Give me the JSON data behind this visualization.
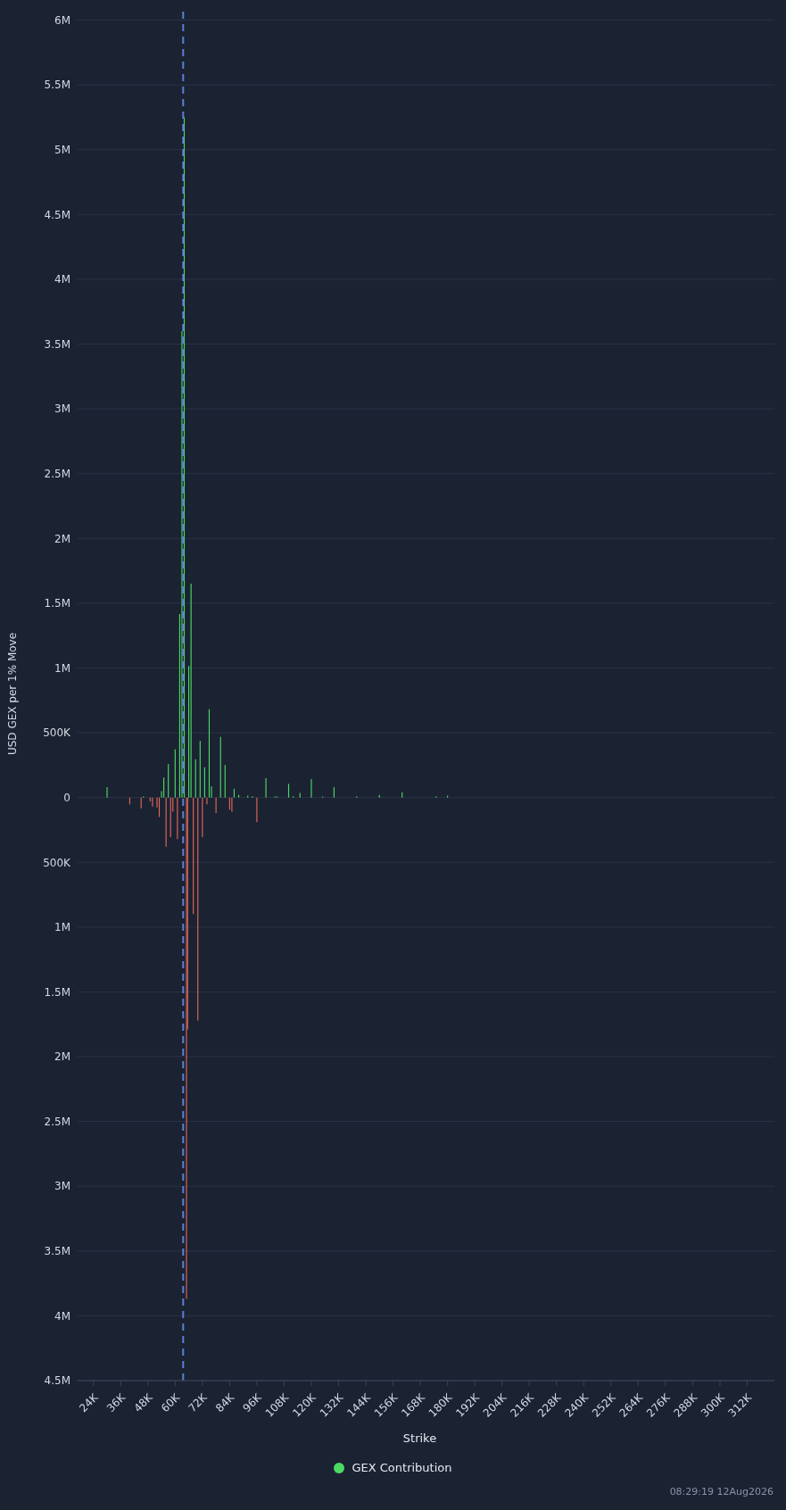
{
  "chart_data": {
    "type": "bar",
    "xlabel": "Strike",
    "ylabel": "USD GEX per 1% Move",
    "x": [
      30000,
      35000,
      40000,
      45000,
      46000,
      49000,
      50000,
      52000,
      53000,
      54000,
      55000,
      56000,
      57000,
      58000,
      59000,
      60000,
      61000,
      62000,
      63000,
      64000,
      65000,
      65500,
      66000,
      67000,
      68000,
      69000,
      70000,
      71000,
      72000,
      73000,
      74000,
      75000,
      76000,
      78000,
      80000,
      82000,
      84000,
      85000,
      86000,
      88000,
      90000,
      92000,
      94000,
      96000,
      100000,
      104000,
      105000,
      110000,
      112000,
      115000,
      120000,
      125000,
      130000,
      140000,
      150000,
      160000,
      175000,
      180000
    ],
    "series": [
      {
        "name": "GEX Contribution",
        "color": "#4cd964",
        "values": [
          80000,
          null,
          -53000,
          -83000,
          8000,
          -30000,
          -70000,
          -76000,
          -150000,
          50000,
          154000,
          -379000,
          257000,
          -305000,
          -110000,
          372000,
          -321000,
          1416000,
          3600000,
          5250000,
          -3870000,
          -1790000,
          1015000,
          1650000,
          -900000,
          296000,
          -1720000,
          436000,
          -305000,
          234000,
          -53000,
          682000,
          85000,
          -120000,
          468000,
          250000,
          -94000,
          -110000,
          67000,
          20000,
          null,
          15000,
          10000,
          -190000,
          149000,
          8000,
          8000,
          105000,
          10000,
          36000,
          143000,
          8000,
          80000,
          10000,
          20000,
          40000,
          10000,
          15000
        ],
        "colors": [
          "#4cd964",
          "#e0675a",
          "#e0675a",
          "#e0675a",
          "#4cd964",
          "#e0675a",
          "#e0675a",
          "#e0675a",
          "#e0675a",
          "#4cd964",
          "#4cd964",
          "#e0675a",
          "#4cd964",
          "#e0675a",
          "#e0675a",
          "#4cd964",
          "#e0675a",
          "#4cd964",
          "#4cd964",
          "#4cd964",
          "#e0675a",
          "#e0675a",
          "#4cd964",
          "#4cd964",
          "#e0675a",
          "#4cd964",
          "#e0675a",
          "#4cd964",
          "#e0675a",
          "#4cd964",
          "#e0675a",
          "#4cd964",
          "#4cd964",
          "#e0675a",
          "#4cd964",
          "#4cd964",
          "#e0675a",
          "#e0675a",
          "#4cd964",
          "#4cd964",
          "#e0675a",
          "#4cd964",
          "#4cd964",
          "#e0675a",
          "#4cd964",
          "#4cd964",
          "#4cd964",
          "#4cd964",
          "#4cd964",
          "#4cd964",
          "#4cd964",
          "#4cd964",
          "#4cd964",
          "#4cd964",
          "#4cd964",
          "#4cd964",
          "#4cd964",
          "#4cd964"
        ]
      }
    ],
    "xlim": [
      17000,
      324000
    ],
    "xticks": [
      {
        "value": 24000,
        "label": "24K"
      },
      {
        "value": 36000,
        "label": "36K"
      },
      {
        "value": 48000,
        "label": "48K"
      },
      {
        "value": 60000,
        "label": "60K"
      },
      {
        "value": 72000,
        "label": "72K"
      },
      {
        "value": 84000,
        "label": "84K"
      },
      {
        "value": 96000,
        "label": "96K"
      },
      {
        "value": 108000,
        "label": "108K"
      },
      {
        "value": 120000,
        "label": "120K"
      },
      {
        "value": 132000,
        "label": "132K"
      },
      {
        "value": 144000,
        "label": "144K"
      },
      {
        "value": 156000,
        "label": "156K"
      },
      {
        "value": 168000,
        "label": "168K"
      },
      {
        "value": 180000,
        "label": "180K"
      },
      {
        "value": 192000,
        "label": "192K"
      },
      {
        "value": 204000,
        "label": "204K"
      },
      {
        "value": 216000,
        "label": "216K"
      },
      {
        "value": 228000,
        "label": "228K"
      },
      {
        "value": 240000,
        "label": "240K"
      },
      {
        "value": 252000,
        "label": "252K"
      },
      {
        "value": 264000,
        "label": "264K"
      },
      {
        "value": 276000,
        "label": "276K"
      },
      {
        "value": 288000,
        "label": "288K"
      },
      {
        "value": 300000,
        "label": "300K"
      },
      {
        "value": 312000,
        "label": "312K"
      }
    ],
    "ylim": [
      -4500000,
      6100000
    ],
    "yticks": [
      {
        "value": -4500000,
        "label": "4.5M"
      },
      {
        "value": -4000000,
        "label": "4M"
      },
      {
        "value": -3500000,
        "label": "3.5M"
      },
      {
        "value": -3000000,
        "label": "3M"
      },
      {
        "value": -2500000,
        "label": "2.5M"
      },
      {
        "value": -2000000,
        "label": "2M"
      },
      {
        "value": -1500000,
        "label": "1.5M"
      },
      {
        "value": -1000000,
        "label": "1M"
      },
      {
        "value": -500000,
        "label": "500K"
      },
      0,
      {
        "value": 500000,
        "label": "500K"
      },
      {
        "value": 1000000,
        "label": "1M"
      },
      {
        "value": 1500000,
        "label": "1.5M"
      },
      {
        "value": 2000000,
        "label": "2M"
      },
      {
        "value": 2500000,
        "label": "2.5M"
      },
      {
        "value": 3000000,
        "label": "3M"
      },
      {
        "value": 3500000,
        "label": "3.5M"
      },
      {
        "value": 4000000,
        "label": "4M"
      },
      {
        "value": 4500000,
        "label": "4.5M"
      },
      {
        "value": 5000000,
        "label": "5M"
      },
      {
        "value": 5500000,
        "label": "5.5M"
      },
      {
        "value": 6000000,
        "label": "6M"
      }
    ],
    "ref_lines": [
      {
        "axis": "x",
        "value": 63500,
        "color": "#5b7fd6",
        "line_style": "dashed"
      }
    ],
    "grid": "y",
    "legend": "bottom",
    "annotations": [
      "08:29:19 12Aug2026"
    ]
  }
}
